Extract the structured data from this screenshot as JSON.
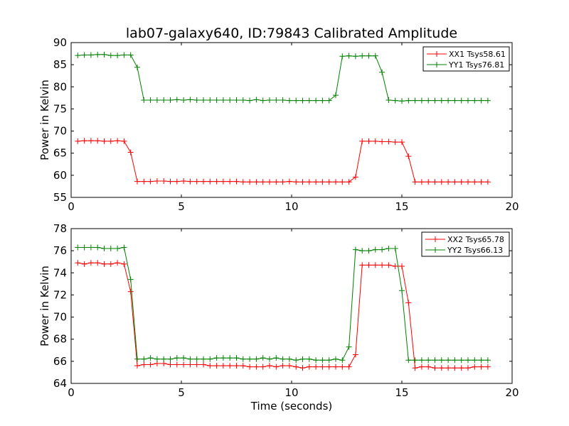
{
  "figure": {
    "title": "lab07-galaxy640, ID:79843 Calibrated Amplitude",
    "xlabel": "Time (seconds)"
  },
  "chart_data": [
    {
      "type": "line",
      "title": "lab07-galaxy640, ID:79843 Calibrated Amplitude",
      "xlabel": "",
      "ylabel": "Power in Kelvin",
      "xlim": [
        0,
        20
      ],
      "ylim": [
        55,
        90
      ],
      "xticks": [
        0,
        5,
        10,
        15,
        20
      ],
      "yticks": [
        55,
        60,
        65,
        70,
        75,
        80,
        85,
        90
      ],
      "grid": false,
      "legend": "top-right",
      "marker": "+",
      "x": [
        0.3,
        0.6,
        0.9,
        1.2,
        1.5,
        1.8,
        2.1,
        2.4,
        2.7,
        3.0,
        3.3,
        3.6,
        3.9,
        4.2,
        4.5,
        4.8,
        5.1,
        5.4,
        5.7,
        6.0,
        6.3,
        6.6,
        6.9,
        7.2,
        7.5,
        7.8,
        8.1,
        8.4,
        8.7,
        9.0,
        9.3,
        9.6,
        9.9,
        10.2,
        10.5,
        10.8,
        11.1,
        11.4,
        11.7,
        12.0,
        12.3,
        12.6,
        12.9,
        13.2,
        13.5,
        13.8,
        14.1,
        14.4,
        14.7,
        15.0,
        15.3,
        15.6,
        15.9,
        16.2,
        16.5,
        16.8,
        17.1,
        17.4,
        17.7,
        18.0,
        18.3,
        18.6,
        18.9
      ],
      "series": [
        {
          "name": "XX1 Tsys58.61",
          "color": "#ff0000",
          "values": [
            67.7,
            67.8,
            67.8,
            67.8,
            67.7,
            67.7,
            67.8,
            67.7,
            65.2,
            58.6,
            58.6,
            58.6,
            58.7,
            58.7,
            58.6,
            58.6,
            58.7,
            58.6,
            58.6,
            58.6,
            58.6,
            58.6,
            58.6,
            58.6,
            58.6,
            58.5,
            58.5,
            58.5,
            58.5,
            58.5,
            58.5,
            58.5,
            58.6,
            58.5,
            58.5,
            58.5,
            58.5,
            58.5,
            58.5,
            58.5,
            58.5,
            58.5,
            59.6,
            67.7,
            67.7,
            67.7,
            67.6,
            67.6,
            67.5,
            67.5,
            64.3,
            58.5,
            58.5,
            58.5,
            58.5,
            58.5,
            58.5,
            58.5,
            58.5,
            58.5,
            58.5,
            58.5,
            58.5
          ]
        },
        {
          "name": "YY1 Tsys76.81",
          "color": "#008000",
          "values": [
            87.1,
            87.2,
            87.2,
            87.3,
            87.3,
            87.1,
            87.1,
            87.2,
            87.2,
            84.4,
            77.0,
            77.0,
            77.0,
            77.0,
            77.0,
            77.1,
            77.0,
            77.1,
            77.0,
            77.0,
            77.0,
            77.0,
            77.0,
            77.0,
            77.0,
            77.0,
            76.9,
            77.1,
            76.9,
            77.0,
            77.0,
            77.0,
            76.9,
            76.9,
            76.9,
            76.9,
            76.9,
            76.9,
            76.9,
            78.1,
            86.9,
            87.0,
            86.9,
            87.0,
            87.0,
            87.0,
            83.3,
            77.0,
            76.9,
            76.8,
            76.9,
            76.9,
            76.9,
            76.9,
            76.9,
            76.9,
            76.9,
            76.9,
            76.9,
            76.9,
            76.9,
            76.9,
            76.9
          ]
        }
      ]
    },
    {
      "type": "line",
      "title": "",
      "xlabel": "Time (seconds)",
      "ylabel": "Power in Kelvin",
      "xlim": [
        0,
        20
      ],
      "ylim": [
        64,
        78
      ],
      "xticks": [
        0,
        5,
        10,
        15,
        20
      ],
      "yticks": [
        64,
        66,
        68,
        70,
        72,
        74,
        76,
        78
      ],
      "grid": false,
      "legend": "top-right",
      "marker": "+",
      "x": [
        0.3,
        0.6,
        0.9,
        1.2,
        1.5,
        1.8,
        2.1,
        2.4,
        2.7,
        3.0,
        3.3,
        3.6,
        3.9,
        4.2,
        4.5,
        4.8,
        5.1,
        5.4,
        5.7,
        6.0,
        6.3,
        6.6,
        6.9,
        7.2,
        7.5,
        7.8,
        8.1,
        8.4,
        8.7,
        9.0,
        9.3,
        9.6,
        9.9,
        10.2,
        10.5,
        10.8,
        11.1,
        11.4,
        11.7,
        12.0,
        12.3,
        12.6,
        12.9,
        13.2,
        13.5,
        13.8,
        14.1,
        14.4,
        14.7,
        15.0,
        15.3,
        15.6,
        15.9,
        16.2,
        16.5,
        16.8,
        17.1,
        17.4,
        17.7,
        18.0,
        18.3,
        18.6,
        18.9
      ],
      "series": [
        {
          "name": "XX2 Tsys65.78",
          "color": "#ff0000",
          "values": [
            74.9,
            74.8,
            74.9,
            74.9,
            74.8,
            74.8,
            74.9,
            74.8,
            72.3,
            65.6,
            65.7,
            65.7,
            65.8,
            65.8,
            65.7,
            65.7,
            65.7,
            65.7,
            65.7,
            65.7,
            65.6,
            65.6,
            65.6,
            65.6,
            65.6,
            65.6,
            65.5,
            65.5,
            65.5,
            65.6,
            65.5,
            65.6,
            65.6,
            65.5,
            65.4,
            65.5,
            65.5,
            65.5,
            65.5,
            65.5,
            65.5,
            65.5,
            66.6,
            74.7,
            74.7,
            74.7,
            74.7,
            74.7,
            74.6,
            74.6,
            71.3,
            65.4,
            65.5,
            65.5,
            65.4,
            65.4,
            65.4,
            65.4,
            65.4,
            65.4,
            65.5,
            65.5,
            65.5
          ]
        },
        {
          "name": "YY2 Tsys66.13",
          "color": "#008000",
          "values": [
            76.3,
            76.3,
            76.3,
            76.3,
            76.2,
            76.2,
            76.2,
            76.3,
            73.4,
            66.2,
            66.2,
            66.3,
            66.2,
            66.2,
            66.2,
            66.3,
            66.3,
            66.2,
            66.2,
            66.2,
            66.2,
            66.3,
            66.3,
            66.3,
            66.3,
            66.2,
            66.2,
            66.2,
            66.3,
            66.2,
            66.3,
            66.2,
            66.2,
            66.1,
            66.2,
            66.2,
            66.1,
            66.1,
            66.1,
            66.2,
            66.1,
            67.3,
            76.1,
            76.0,
            76.0,
            76.1,
            76.1,
            76.2,
            76.2,
            72.4,
            66.1,
            66.1,
            66.1,
            66.1,
            66.1,
            66.1,
            66.1,
            66.1,
            66.1,
            66.1,
            66.1,
            66.1,
            66.1
          ]
        }
      ]
    }
  ]
}
